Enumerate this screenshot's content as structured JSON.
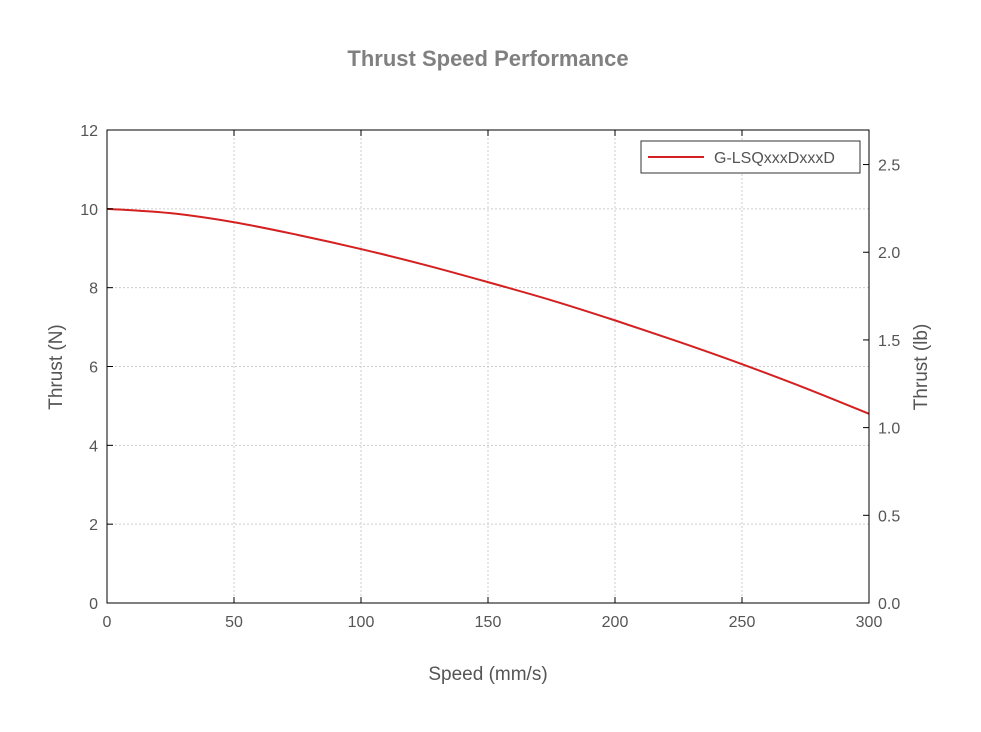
{
  "chart_data": {
    "type": "line",
    "title": "Thrust Speed Performance",
    "xlabel": "Speed (mm/s)",
    "ylabel": "Thrust (N)",
    "y2label": "Thrust (lb)",
    "xlim": [
      0,
      300
    ],
    "ylim": [
      0,
      12
    ],
    "y2lim": [
      0,
      2.697
    ],
    "xticks": [
      "0",
      "50",
      "100",
      "150",
      "200",
      "250",
      "300"
    ],
    "yticks": [
      "0",
      "2",
      "4",
      "6",
      "8",
      "10",
      "12"
    ],
    "y2ticks": [
      "0.0",
      "0.5",
      "1.0",
      "1.5",
      "2.0",
      "2.5"
    ],
    "grid": true,
    "legend_position": "top-right",
    "series_color": "#d42020",
    "series": [
      {
        "name": "G-LSQxxxDxxxD",
        "x": [
          0,
          25,
          50,
          75,
          100,
          125,
          150,
          175,
          200,
          225,
          250,
          275,
          300
        ],
        "y": [
          10.0,
          9.89,
          9.66,
          9.34,
          8.98,
          8.58,
          8.14,
          7.68,
          7.17,
          6.63,
          6.06,
          5.45,
          4.8
        ]
      }
    ]
  }
}
